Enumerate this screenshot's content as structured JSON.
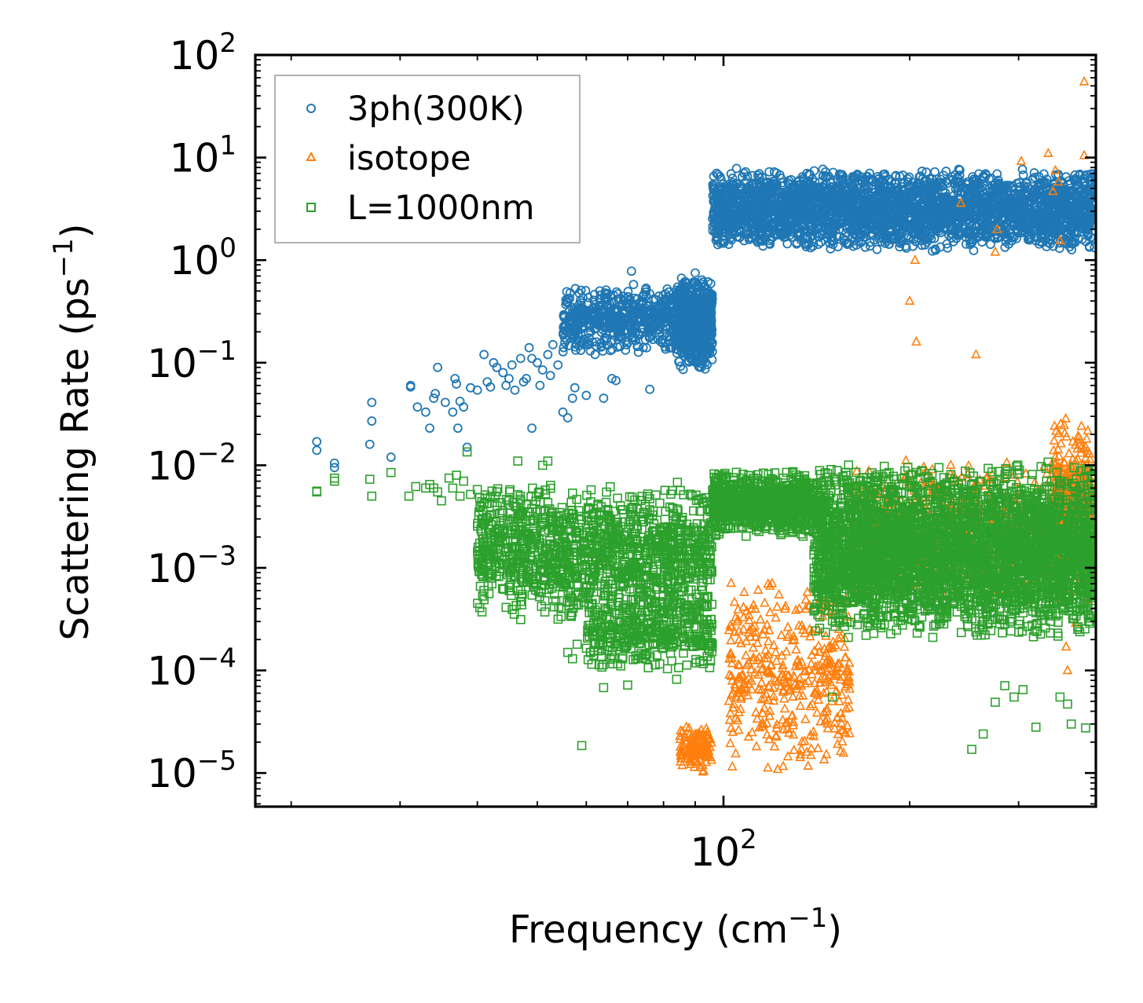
{
  "chart_data": {
    "type": "scatter",
    "xscale": "log",
    "yscale": "log",
    "xlabel": "Frequency (cm",
    "xlabel_sup": "−1",
    "xlabel_tail": ")",
    "ylabel": "Scattering Rate (ps",
    "ylabel_sup": "−1",
    "ylabel_tail": ")",
    "xlim": [
      17.5,
      400
    ],
    "ylim": [
      4.7e-06,
      100
    ],
    "xticks": [
      {
        "base": "10",
        "exp": "2",
        "value": 100
      }
    ],
    "yticks": [
      {
        "base": "10",
        "exp": "2",
        "value": 100
      },
      {
        "base": "10",
        "exp": "1",
        "value": 10
      },
      {
        "base": "10",
        "exp": "0",
        "value": 1
      },
      {
        "base": "10",
        "exp": "−1",
        "value": 0.1
      },
      {
        "base": "10",
        "exp": "−2",
        "value": 0.01
      },
      {
        "base": "10",
        "exp": "−3",
        "value": 0.001
      },
      {
        "base": "10",
        "exp": "−4",
        "value": 0.0001
      },
      {
        "base": "10",
        "exp": "−5",
        "value": 1e-05
      }
    ],
    "legend_position": "top-left",
    "series": [
      {
        "name": "3ph(300K)",
        "marker": "circle",
        "color": "#1f77b4",
        "points": [
          [
            22,
            0.017
          ],
          [
            22,
            0.014
          ],
          [
            23.5,
            0.0105
          ],
          [
            23.5,
            0.0095
          ],
          [
            27,
            0.041
          ],
          [
            27,
            0.027
          ],
          [
            26.8,
            0.016
          ],
          [
            29,
            0.012
          ],
          [
            31.2,
            0.06
          ],
          [
            31.2,
            0.058
          ],
          [
            32,
            0.037
          ],
          [
            33,
            0.033
          ],
          [
            33.5,
            0.023
          ],
          [
            34,
            0.045
          ],
          [
            34.5,
            0.09
          ],
          [
            34.2,
            0.05
          ],
          [
            35.5,
            0.041
          ],
          [
            36.5,
            0.033
          ],
          [
            36.8,
            0.07
          ],
          [
            37,
            0.062
          ],
          [
            37.2,
            0.023
          ],
          [
            37.5,
            0.042
          ],
          [
            38,
            0.037
          ],
          [
            38.5,
            0.015
          ],
          [
            39,
            0.057
          ],
          [
            40,
            0.054
          ],
          [
            41,
            0.12
          ],
          [
            41.5,
            0.065
          ],
          [
            42,
            0.058
          ],
          [
            42.5,
            0.1
          ],
          [
            43,
            0.09
          ],
          [
            44,
            0.08
          ],
          [
            44.5,
            0.06
          ],
          [
            45,
            0.07
          ],
          [
            45.5,
            0.095
          ],
          [
            46,
            0.054
          ],
          [
            47,
            0.11
          ],
          [
            47.5,
            0.065
          ],
          [
            48,
            0.07
          ],
          [
            48.5,
            0.14
          ],
          [
            49,
            0.11
          ],
          [
            49,
            0.023
          ],
          [
            50,
            0.1
          ],
          [
            50.5,
            0.06
          ],
          [
            51,
            0.085
          ],
          [
            52,
            0.12
          ],
          [
            52.5,
            0.075
          ],
          [
            53,
            0.15
          ],
          [
            54,
            0.095
          ],
          [
            55,
            0.033
          ],
          [
            56,
            0.029
          ],
          [
            57,
            0.045
          ],
          [
            57.5,
            0.057
          ],
          [
            58,
            0.17
          ],
          [
            59,
            0.26
          ],
          [
            59.5,
            0.15
          ],
          [
            60,
            0.048
          ],
          [
            61,
            0.2
          ],
          [
            62,
            0.12
          ],
          [
            63,
            0.24
          ],
          [
            64,
            0.045
          ],
          [
            66,
            0.07
          ],
          [
            67,
            0.067
          ],
          [
            68,
            0.28
          ],
          [
            69,
            0.2
          ],
          [
            70,
            0.44
          ],
          [
            70.5,
            0.4
          ],
          [
            71,
            0.78
          ],
          [
            72,
            0.3
          ],
          [
            73,
            0.25
          ],
          [
            75,
            0.3
          ],
          [
            76,
            0.055
          ],
          [
            78,
            0.3
          ],
          [
            80,
            0.35
          ],
          [
            82,
            0.4
          ],
          [
            84,
            0.2
          ],
          [
            86,
            0.26
          ],
          [
            88,
            0.5
          ],
          [
            90,
            0.75
          ],
          [
            92,
            0.35
          ],
          [
            94,
            0.4
          ]
        ],
        "bands": [
          {
            "x": [
              55,
              95
            ],
            "y": [
              0.12,
              0.6
            ],
            "n": 700
          },
          {
            "x": [
              84,
              96
            ],
            "y": [
              0.08,
              0.7
            ],
            "n": 500
          },
          {
            "x": [
              96,
              400
            ],
            "y": [
              1.2,
              8
            ],
            "n": 3000
          }
        ]
      },
      {
        "name": "isotope",
        "marker": "triangle",
        "color": "#ff7f0e",
        "points": [
          [
            383,
            55
          ],
          [
            383,
            10.5
          ],
          [
            303,
            9.2
          ],
          [
            335,
            11
          ],
          [
            341,
            4.7
          ],
          [
            344,
            7.5
          ],
          [
            348,
            5.8
          ],
          [
            350,
            1.55
          ],
          [
            242,
            3.6
          ],
          [
            277,
            2.0
          ],
          [
            275,
            1.2
          ],
          [
            204,
            1.0
          ],
          [
            200,
            0.4
          ],
          [
            205,
            0.16
          ],
          [
            256,
            0.12
          ],
          [
            360,
            0.0001
          ],
          [
            358,
            0.00017
          ],
          [
            371,
            0.00029
          ],
          [
            380,
            0.0008
          ]
        ],
        "bands": [
          {
            "x": [
              85,
              96
            ],
            "y": [
              1e-05,
              3e-05
            ],
            "n": 120
          },
          {
            "x": [
              102,
              160
            ],
            "y": [
              9.5e-06,
              0.0009
            ],
            "n": 400
          },
          {
            "x": [
              160,
              400
            ],
            "y": [
              0.0004,
              0.012
            ],
            "n": 900
          },
          {
            "x": [
              340,
              395
            ],
            "y": [
              0.0008,
              0.03
            ],
            "n": 300
          }
        ]
      },
      {
        "name": "L=1000nm",
        "marker": "square",
        "color": "#2ca02c",
        "points": [
          [
            22,
            0.0055
          ],
          [
            22,
            0.0056
          ],
          [
            23.5,
            0.007
          ],
          [
            23.5,
            0.0075
          ],
          [
            26.8,
            0.0073
          ],
          [
            27,
            0.005
          ],
          [
            29,
            0.0085
          ],
          [
            31,
            0.005
          ],
          [
            31.8,
            0.0062
          ],
          [
            33,
            0.006
          ],
          [
            33.5,
            0.0065
          ],
          [
            34,
            0.006
          ],
          [
            34.5,
            0.0055
          ],
          [
            35,
            0.0045
          ],
          [
            36,
            0.0075
          ],
          [
            36.5,
            0.006
          ],
          [
            37,
            0.008
          ],
          [
            37.5,
            0.005
          ],
          [
            38,
            0.007
          ],
          [
            38.5,
            0.0135
          ],
          [
            39,
            0.0052
          ],
          [
            40,
            0.0058
          ],
          [
            41,
            0.0042
          ],
          [
            42,
            0.0049
          ],
          [
            43,
            0.0055
          ],
          [
            44,
            0.0036
          ],
          [
            45,
            0.0045
          ],
          [
            46,
            0.004
          ],
          [
            46.5,
            0.011
          ],
          [
            47,
            0.0045
          ],
          [
            48,
            0.0042
          ],
          [
            49,
            0.0038
          ],
          [
            50,
            0.0035
          ],
          [
            51,
            0.01
          ],
          [
            52,
            0.011
          ],
          [
            54,
            0.0032
          ],
          [
            55,
            0.0015
          ],
          [
            56,
            0.00015
          ],
          [
            57,
            0.00013
          ],
          [
            58,
            0.00018
          ],
          [
            59,
            1.85e-05
          ],
          [
            61,
            0.00015
          ],
          [
            64,
            6.8e-05
          ],
          [
            66,
            0.00014
          ],
          [
            68,
            0.00021
          ],
          [
            70,
            7.2e-05
          ],
          [
            73,
            0.00014
          ],
          [
            84,
            8.2e-05
          ],
          [
            150,
            5.5e-05
          ],
          [
            170,
            0.00022
          ],
          [
            218,
            0.00021
          ],
          [
            252,
            1.7e-05
          ],
          [
            263,
            2.4e-05
          ],
          [
            275,
            4.9e-05
          ],
          [
            285,
            7.1e-05
          ],
          [
            295,
            5.5e-05
          ],
          [
            305,
            6.5e-05
          ],
          [
            320,
            2.8e-05
          ],
          [
            350,
            5.5e-05
          ],
          [
            360,
            4.7e-05
          ],
          [
            365,
            3e-05
          ],
          [
            385,
            2.75e-05
          ]
        ],
        "bands": [
          {
            "x": [
              40,
              96
            ],
            "y": [
              0.0003,
              0.007
            ],
            "n": 1300
          },
          {
            "x": [
              60,
              96
            ],
            "y": [
              0.0001,
              0.0006
            ],
            "n": 400
          },
          {
            "x": [
              96,
              140
            ],
            "y": [
              0.002,
              0.009
            ],
            "n": 800
          },
          {
            "x": [
              140,
              400
            ],
            "y": [
              0.0002,
              0.011
            ],
            "n": 3600
          }
        ]
      }
    ]
  }
}
